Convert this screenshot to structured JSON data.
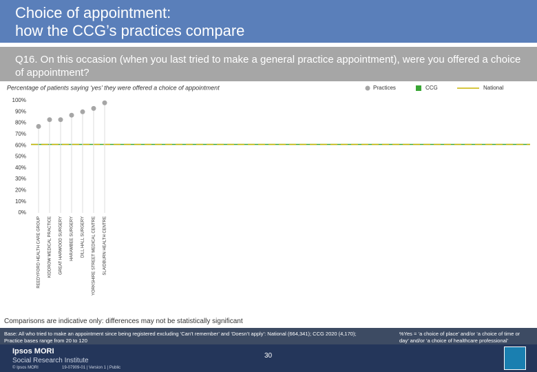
{
  "header": {
    "title_line1": "Choice of appointment:",
    "title_line2": "how the CCG’s practices compare",
    "question": "Q16. On this occasion (when you last tried to make a general practice appointment), were you offered a choice of appointment?"
  },
  "chart_data": {
    "type": "dot",
    "subtitle": "Percentage of patients saying ‘yes’ they were offered a choice of appointment",
    "categories": [
      "REEDYFORD HEALTH CARE GROUP",
      "KIDDROW MEDICAL PRACTICE",
      "GREAT HARWOOD SURGERY",
      "HARAMBEE SURGERY",
      "DILL HALL SURGERY",
      "YORKSHIRE STREET MEDICAL CENTRE",
      "SLAIDBURN HEALTH CENTRE"
    ],
    "series": [
      {
        "name": "Practices",
        "color": "#a6a6a6",
        "values": [
          77,
          83,
          83,
          87,
          90,
          93,
          98
        ]
      }
    ],
    "reference_lines": [
      {
        "name": "CCG",
        "color": "#3aa635",
        "value": 61
      },
      {
        "name": "National",
        "color": "#c8b400",
        "value": 61
      }
    ],
    "ylim": [
      0,
      100
    ],
    "yticks": [
      {
        "value": 0,
        "label": "0%"
      },
      {
        "value": 10,
        "label": "10%"
      },
      {
        "value": 20,
        "label": "20%"
      },
      {
        "value": 30,
        "label": "30%"
      },
      {
        "value": 40,
        "label": "40%"
      },
      {
        "value": 50,
        "label": "50%"
      },
      {
        "value": 60,
        "label": "60%"
      },
      {
        "value": 70,
        "label": "70%"
      },
      {
        "value": 80,
        "label": "80%"
      },
      {
        "value": 90,
        "label": "90%"
      },
      {
        "value": 100,
        "label": "100%"
      }
    ]
  },
  "footer": {
    "comparison_note": "Comparisons are indicative only: differences may not be statistically significant",
    "base": "Base: All who tried to make an appointment since being registered excluding ‘Can’t remember’ and ‘Doesn’t apply’: National (664,341); CCG 2020 (4,170); Practice bases range from 20 to 120",
    "note": "%Yes = ‘a choice of place’ and/or ‘a choice of time or day’ and/or ‘a choice of healthcare professional’",
    "page": "30",
    "logo_line1": "Ipsos MORI",
    "logo_line2": "Social Research Institute",
    "copyright": "© Ipsos MORI",
    "version": "19-07909-01 | Version 1 | Public"
  }
}
